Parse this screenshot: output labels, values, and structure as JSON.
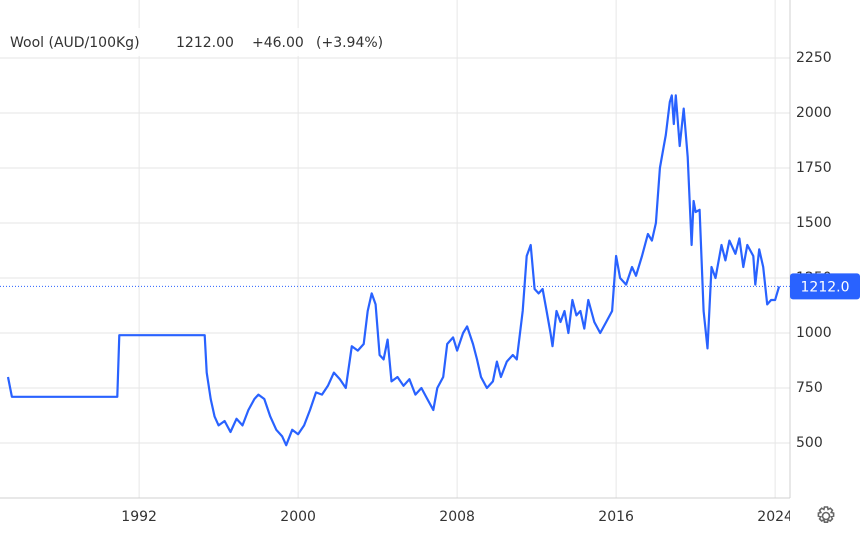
{
  "chart_data": {
    "type": "line",
    "title": "Wool (AUD/100Kg)",
    "price": {
      "value": 1212,
      "label": "1212.00"
    },
    "change": {
      "value": 46,
      "label": "+46.00"
    },
    "change_pct": {
      "value": 3.94,
      "label": "(+3.94%)"
    },
    "last_value": {
      "value": 1212,
      "label": "1212.0"
    },
    "color": "#2962ff",
    "change_color": "#3cb93c",
    "grid": true,
    "xlim": [
      1985,
      2025
    ],
    "xticks": [
      1992,
      2000,
      2008,
      2016,
      2024
    ],
    "ylim": [
      250,
      2500
    ],
    "yticks": [
      500,
      750,
      1000,
      1250,
      1500,
      1750,
      2000,
      2250
    ],
    "x": [
      1985.4,
      1985.6,
      1990.9,
      1991.0,
      1995.3,
      1995.4,
      1995.6,
      1995.8,
      1996.0,
      1996.3,
      1996.6,
      1996.9,
      1997.2,
      1997.5,
      1997.8,
      1998.0,
      1998.3,
      1998.6,
      1998.9,
      1999.2,
      1999.4,
      1999.7,
      2000.0,
      2000.3,
      2000.6,
      2000.9,
      2001.2,
      2001.5,
      2001.8,
      2002.1,
      2002.4,
      2002.7,
      2003.0,
      2003.3,
      2003.5,
      2003.7,
      2003.9,
      2004.1,
      2004.3,
      2004.5,
      2004.7,
      2005.0,
      2005.3,
      2005.6,
      2005.9,
      2006.2,
      2006.5,
      2006.8,
      2007.0,
      2007.3,
      2007.5,
      2007.8,
      2008.0,
      2008.3,
      2008.5,
      2008.8,
      2009.0,
      2009.2,
      2009.5,
      2009.8,
      2010.0,
      2010.2,
      2010.5,
      2010.8,
      2011.0,
      2011.3,
      2011.5,
      2011.7,
      2011.9,
      2012.1,
      2012.3,
      2012.5,
      2012.7,
      2012.8,
      2013.0,
      2013.2,
      2013.4,
      2013.6,
      2013.8,
      2014.0,
      2014.2,
      2014.4,
      2014.6,
      2014.9,
      2015.2,
      2015.5,
      2015.8,
      2016.0,
      2016.2,
      2016.5,
      2016.8,
      2017.0,
      2017.3,
      2017.6,
      2017.8,
      2018.0,
      2018.2,
      2018.4,
      2018.5,
      2018.7,
      2018.8,
      2018.9,
      2019.0,
      2019.2,
      2019.4,
      2019.6,
      2019.8,
      2019.9,
      2020.0,
      2020.2,
      2020.4,
      2020.6,
      2020.8,
      2021.0,
      2021.3,
      2021.5,
      2021.7,
      2022.0,
      2022.2,
      2022.4,
      2022.6,
      2022.9,
      2023.0,
      2023.2,
      2023.4,
      2023.6,
      2023.8,
      2024.0,
      2024.2
    ],
    "values": [
      800,
      710,
      710,
      990,
      990,
      820,
      700,
      620,
      580,
      600,
      550,
      610,
      580,
      650,
      700,
      720,
      700,
      620,
      560,
      530,
      490,
      560,
      540,
      580,
      650,
      730,
      720,
      760,
      820,
      790,
      750,
      940,
      920,
      950,
      1100,
      1180,
      1130,
      900,
      880,
      970,
      780,
      800,
      760,
      790,
      720,
      750,
      700,
      650,
      750,
      800,
      950,
      980,
      920,
      1000,
      1030,
      950,
      880,
      800,
      750,
      780,
      870,
      800,
      870,
      900,
      880,
      1100,
      1350,
      1400,
      1200,
      1180,
      1200,
      1100,
      1000,
      940,
      1100,
      1050,
      1100,
      1000,
      1150,
      1080,
      1100,
      1020,
      1150,
      1050,
      1000,
      1050,
      1100,
      1350,
      1250,
      1220,
      1300,
      1260,
      1350,
      1450,
      1420,
      1500,
      1750,
      1850,
      1900,
      2050,
      2080,
      1950,
      2080,
      1850,
      2020,
      1800,
      1400,
      1600,
      1550,
      1560,
      1100,
      930,
      1300,
      1250,
      1400,
      1330,
      1420,
      1360,
      1430,
      1300,
      1400,
      1350,
      1220,
      1380,
      1300,
      1130,
      1150,
      1150,
      1212
    ]
  }
}
